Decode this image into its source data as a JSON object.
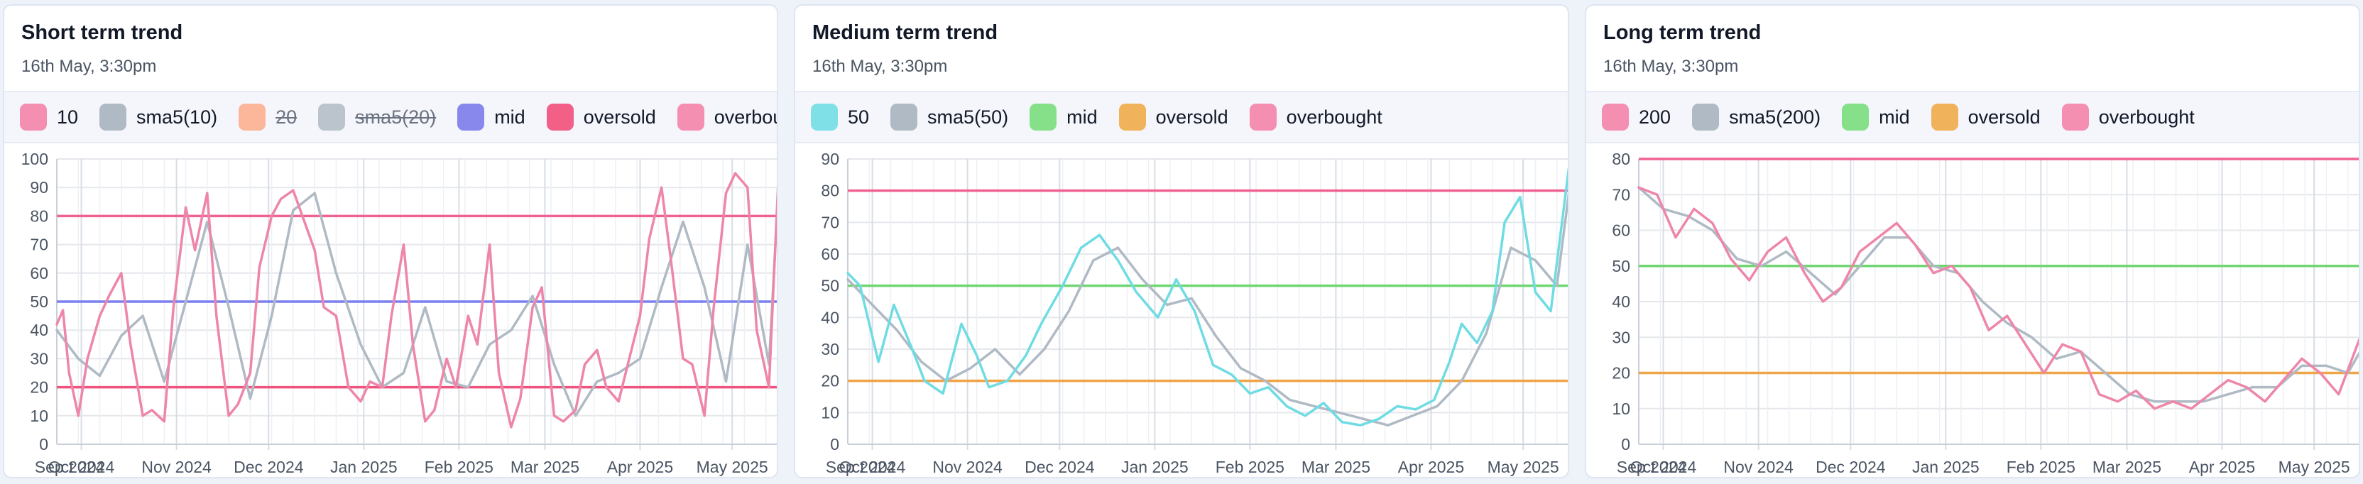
{
  "x_ticks": [
    "Oct 2024",
    "Nov 2024",
    "Dec 2024",
    "Jan 2025",
    "Feb 2025",
    "Mar 2025",
    "Apr 2025",
    "May 2025"
  ],
  "sep_tick": "Sep 2024",
  "panels": [
    {
      "title": "Short term trend",
      "subtitle": "16th May, 3:30pm",
      "legend": [
        {
          "label": "10",
          "color": "#f48fb1",
          "hidden": false
        },
        {
          "label": "sma5(10)",
          "color": "#b0bac4",
          "hidden": false
        },
        {
          "label": "20",
          "color": "#fdab89",
          "hidden": true
        },
        {
          "label": "sma5(20)",
          "color": "#b0bac4",
          "hidden": true
        },
        {
          "label": "mid",
          "color": "#8888ec",
          "hidden": false
        },
        {
          "label": "oversold",
          "color": "#f26088",
          "hidden": false
        },
        {
          "label": "overbought",
          "color": "#f48fb1",
          "hidden": false
        }
      ]
    },
    {
      "title": "Medium term trend",
      "subtitle": "16th May, 3:30pm",
      "legend": [
        {
          "label": "50",
          "color": "#7fe0e7",
          "hidden": false
        },
        {
          "label": "sma5(50)",
          "color": "#b0bac4",
          "hidden": false
        },
        {
          "label": "mid",
          "color": "#86e08a",
          "hidden": false
        },
        {
          "label": "oversold",
          "color": "#f0b25a",
          "hidden": false
        },
        {
          "label": "overbought",
          "color": "#f48fb1",
          "hidden": false
        }
      ]
    },
    {
      "title": "Long term trend",
      "subtitle": "16th May, 3:30pm",
      "legend": [
        {
          "label": "200",
          "color": "#f48fb1",
          "hidden": false
        },
        {
          "label": "sma5(200)",
          "color": "#b0bac4",
          "hidden": false
        },
        {
          "label": "mid",
          "color": "#86e08a",
          "hidden": false
        },
        {
          "label": "oversold",
          "color": "#f0b25a",
          "hidden": false
        },
        {
          "label": "overbought",
          "color": "#f48fb1",
          "hidden": false
        }
      ]
    }
  ],
  "chart_data": [
    {
      "type": "line",
      "grid": true,
      "ylim": [
        0,
        100
      ],
      "xlim": [
        "2024-09-23",
        "2025-05-16"
      ],
      "yticks": [
        0,
        10,
        20,
        30,
        40,
        50,
        60,
        70,
        80,
        90,
        100
      ],
      "hlines": [
        {
          "name": "overbought",
          "value": 80,
          "color": "#f06292"
        },
        {
          "name": "mid",
          "value": 50,
          "color": "#7b7ff0"
        },
        {
          "name": "oversold",
          "value": 20,
          "color": "#f0527e"
        }
      ],
      "series": [
        {
          "name": "10",
          "color": "#ee86aa",
          "x": [
            "2024-09-23",
            "2024-09-25",
            "2024-09-27",
            "2024-09-30",
            "2024-10-03",
            "2024-10-07",
            "2024-10-10",
            "2024-10-14",
            "2024-10-17",
            "2024-10-21",
            "2024-10-24",
            "2024-10-28",
            "2024-10-31",
            "2024-11-04",
            "2024-11-07",
            "2024-11-11",
            "2024-11-14",
            "2024-11-18",
            "2024-11-21",
            "2024-11-25",
            "2024-11-28",
            "2024-12-02",
            "2024-12-05",
            "2024-12-09",
            "2024-12-12",
            "2024-12-16",
            "2024-12-19",
            "2024-12-23",
            "2024-12-27",
            "2024-12-31",
            "2025-01-03",
            "2025-01-07",
            "2025-01-10",
            "2025-01-14",
            "2025-01-17",
            "2025-01-21",
            "2025-01-24",
            "2025-01-28",
            "2025-01-31",
            "2025-02-04",
            "2025-02-07",
            "2025-02-11",
            "2025-02-14",
            "2025-02-18",
            "2025-02-21",
            "2025-02-25",
            "2025-02-28",
            "2025-03-04",
            "2025-03-07",
            "2025-03-11",
            "2025-03-14",
            "2025-03-18",
            "2025-03-21",
            "2025-03-25",
            "2025-03-28",
            "2025-04-01",
            "2025-04-04",
            "2025-04-08",
            "2025-04-11",
            "2025-04-15",
            "2025-04-18",
            "2025-04-22",
            "2025-04-25",
            "2025-04-29",
            "2025-05-02",
            "2025-05-06",
            "2025-05-09",
            "2025-05-13",
            "2025-05-16"
          ],
          "values": [
            42,
            47,
            25,
            10,
            30,
            45,
            52,
            60,
            35,
            10,
            12,
            8,
            48,
            83,
            68,
            88,
            45,
            10,
            14,
            25,
            62,
            80,
            86,
            89,
            80,
            68,
            48,
            45,
            20,
            15,
            22,
            20,
            45,
            70,
            35,
            8,
            12,
            30,
            20,
            45,
            35,
            70,
            25,
            6,
            16,
            48,
            55,
            10,
            8,
            12,
            28,
            33,
            20,
            15,
            28,
            45,
            72,
            90,
            65,
            30,
            28,
            10,
            48,
            88,
            95,
            90,
            40,
            20,
            92
          ]
        },
        {
          "name": "sma5(10)",
          "color": "#b0bac4",
          "x": [
            "2024-09-23",
            "2024-09-30",
            "2024-10-07",
            "2024-10-14",
            "2024-10-21",
            "2024-10-28",
            "2024-11-04",
            "2024-11-11",
            "2024-11-18",
            "2024-11-25",
            "2024-12-02",
            "2024-12-09",
            "2024-12-16",
            "2024-12-23",
            "2024-12-31",
            "2025-01-07",
            "2025-01-14",
            "2025-01-21",
            "2025-01-28",
            "2025-02-04",
            "2025-02-11",
            "2025-02-18",
            "2025-02-25",
            "2025-03-04",
            "2025-03-11",
            "2025-03-18",
            "2025-03-25",
            "2025-04-01",
            "2025-04-08",
            "2025-04-15",
            "2025-04-22",
            "2025-04-29",
            "2025-05-06",
            "2025-05-13",
            "2025-05-16"
          ],
          "values": [
            40,
            30,
            24,
            38,
            45,
            22,
            50,
            78,
            48,
            16,
            45,
            82,
            88,
            60,
            35,
            20,
            25,
            48,
            22,
            20,
            35,
            40,
            52,
            28,
            10,
            22,
            25,
            30,
            55,
            78,
            55,
            22,
            70,
            28,
            88
          ]
        }
      ]
    },
    {
      "type": "line",
      "grid": true,
      "ylim": [
        0,
        90
      ],
      "xlim": [
        "2024-09-23",
        "2025-05-16"
      ],
      "yticks": [
        0,
        10,
        20,
        30,
        40,
        50,
        60,
        70,
        80,
        90
      ],
      "hlines": [
        {
          "name": "overbought",
          "value": 80,
          "color": "#f06292"
        },
        {
          "name": "mid",
          "value": 50,
          "color": "#6fd672"
        },
        {
          "name": "oversold",
          "value": 20,
          "color": "#f0a448"
        }
      ],
      "series": [
        {
          "name": "50",
          "color": "#6fdce4",
          "x": [
            "2024-09-23",
            "2024-09-27",
            "2024-10-03",
            "2024-10-08",
            "2024-10-14",
            "2024-10-18",
            "2024-10-24",
            "2024-10-30",
            "2024-11-04",
            "2024-11-08",
            "2024-11-14",
            "2024-11-20",
            "2024-11-25",
            "2024-12-02",
            "2024-12-08",
            "2024-12-14",
            "2024-12-20",
            "2024-12-26",
            "2025-01-02",
            "2025-01-08",
            "2025-01-14",
            "2025-01-20",
            "2025-01-26",
            "2025-02-01",
            "2025-02-07",
            "2025-02-13",
            "2025-02-19",
            "2025-02-25",
            "2025-03-03",
            "2025-03-09",
            "2025-03-15",
            "2025-03-21",
            "2025-03-27",
            "2025-04-02",
            "2025-04-07",
            "2025-04-11",
            "2025-04-16",
            "2025-04-21",
            "2025-04-25",
            "2025-04-30",
            "2025-05-05",
            "2025-05-10",
            "2025-05-16"
          ],
          "values": [
            54,
            50,
            26,
            44,
            30,
            20,
            16,
            38,
            28,
            18,
            20,
            28,
            38,
            50,
            62,
            66,
            58,
            48,
            40,
            52,
            42,
            25,
            22,
            16,
            18,
            12,
            9,
            13,
            7,
            6,
            8,
            12,
            11,
            14,
            26,
            38,
            32,
            42,
            70,
            78,
            48,
            42,
            88
          ]
        },
        {
          "name": "sma5(50)",
          "color": "#b0bac4",
          "x": [
            "2024-09-23",
            "2024-10-01",
            "2024-10-09",
            "2024-10-17",
            "2024-10-25",
            "2024-11-02",
            "2024-11-10",
            "2024-11-18",
            "2024-11-26",
            "2024-12-04",
            "2024-12-12",
            "2024-12-20",
            "2024-12-28",
            "2025-01-05",
            "2025-01-13",
            "2025-01-21",
            "2025-01-29",
            "2025-02-06",
            "2025-02-14",
            "2025-02-22",
            "2025-03-02",
            "2025-03-10",
            "2025-03-18",
            "2025-03-26",
            "2025-04-03",
            "2025-04-11",
            "2025-04-19",
            "2025-04-27",
            "2025-05-05",
            "2025-05-12",
            "2025-05-16"
          ],
          "values": [
            52,
            44,
            36,
            26,
            20,
            24,
            30,
            22,
            30,
            42,
            58,
            62,
            52,
            44,
            46,
            34,
            24,
            20,
            14,
            12,
            10,
            8,
            6,
            9,
            12,
            20,
            35,
            62,
            58,
            50,
            80
          ]
        }
      ]
    },
    {
      "type": "line",
      "grid": true,
      "ylim": [
        0,
        80
      ],
      "xlim": [
        "2024-09-23",
        "2025-05-16"
      ],
      "yticks": [
        0,
        10,
        20,
        30,
        40,
        50,
        60,
        70,
        80
      ],
      "hlines": [
        {
          "name": "overbought",
          "value": 80,
          "color": "#f06292"
        },
        {
          "name": "mid",
          "value": 50,
          "color": "#6fd672"
        },
        {
          "name": "oversold",
          "value": 20,
          "color": "#f0a448"
        }
      ],
      "series": [
        {
          "name": "200",
          "color": "#ee86aa",
          "x": [
            "2024-09-23",
            "2024-09-29",
            "2024-10-05",
            "2024-10-11",
            "2024-10-17",
            "2024-10-23",
            "2024-10-29",
            "2024-11-04",
            "2024-11-10",
            "2024-11-16",
            "2024-11-22",
            "2024-11-28",
            "2024-12-04",
            "2024-12-10",
            "2024-12-16",
            "2024-12-22",
            "2024-12-28",
            "2025-01-03",
            "2025-01-09",
            "2025-01-15",
            "2025-01-21",
            "2025-01-27",
            "2025-02-02",
            "2025-02-08",
            "2025-02-14",
            "2025-02-20",
            "2025-02-26",
            "2025-03-04",
            "2025-03-10",
            "2025-03-16",
            "2025-03-22",
            "2025-03-28",
            "2025-04-03",
            "2025-04-09",
            "2025-04-15",
            "2025-04-21",
            "2025-04-27",
            "2025-05-03",
            "2025-05-09",
            "2025-05-16"
          ],
          "values": [
            72,
            70,
            58,
            66,
            62,
            52,
            46,
            54,
            58,
            48,
            40,
            44,
            54,
            58,
            62,
            56,
            48,
            50,
            44,
            32,
            36,
            28,
            20,
            28,
            26,
            14,
            12,
            15,
            10,
            12,
            10,
            14,
            18,
            16,
            12,
            18,
            24,
            20,
            14,
            30
          ]
        },
        {
          "name": "sma5(200)",
          "color": "#b0bac4",
          "x": [
            "2024-09-23",
            "2024-10-01",
            "2024-10-09",
            "2024-10-17",
            "2024-10-25",
            "2024-11-02",
            "2024-11-10",
            "2024-11-18",
            "2024-11-26",
            "2024-12-04",
            "2024-12-12",
            "2024-12-20",
            "2024-12-28",
            "2025-01-05",
            "2025-01-13",
            "2025-01-21",
            "2025-01-29",
            "2025-02-06",
            "2025-02-14",
            "2025-02-22",
            "2025-03-02",
            "2025-03-10",
            "2025-03-18",
            "2025-03-26",
            "2025-04-03",
            "2025-04-11",
            "2025-04-19",
            "2025-04-27",
            "2025-05-05",
            "2025-05-12",
            "2025-05-16"
          ],
          "values": [
            72,
            66,
            64,
            60,
            52,
            50,
            54,
            48,
            42,
            50,
            58,
            58,
            50,
            48,
            40,
            34,
            30,
            24,
            26,
            20,
            14,
            12,
            12,
            12,
            14,
            16,
            16,
            22,
            22,
            20,
            26
          ]
        }
      ]
    }
  ]
}
